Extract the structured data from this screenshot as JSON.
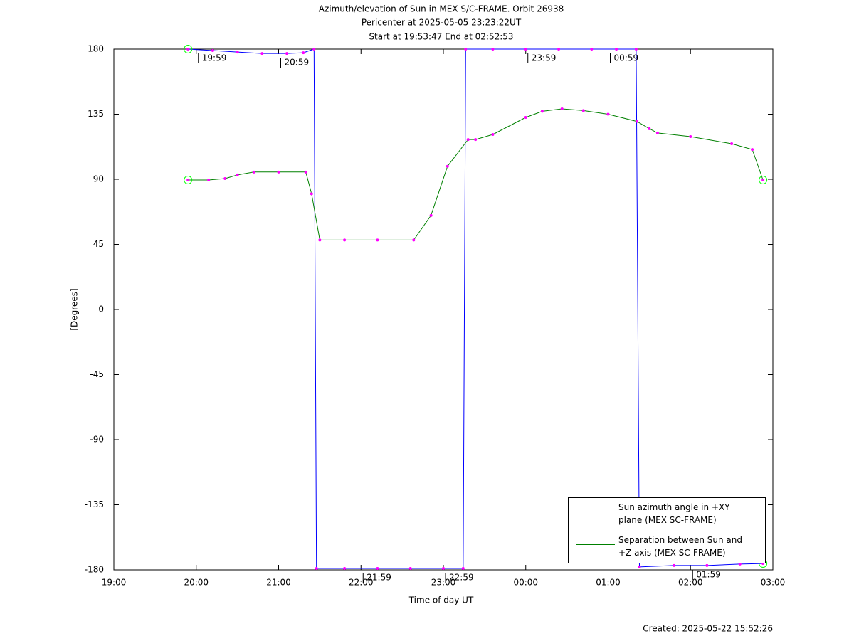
{
  "chart_data": {
    "type": "line",
    "title": "Azimuth/elevation of Sun in MEX S/C-FRAME.  Orbit 26938",
    "subtitle": [
      "Pericenter at 2025-05-05 23:23:22UT",
      "Start at 19:53:47 End at 02:52:53"
    ],
    "xlabel": "Time of day UT",
    "ylabel": "[Degrees]",
    "footer": "Created: 2025-05-22 15:52:26",
    "xlim": [
      19,
      27
    ],
    "xticks": [
      {
        "value": 19,
        "label": "19:00"
      },
      {
        "value": 20,
        "label": "20:00"
      },
      {
        "value": 21,
        "label": "21:00"
      },
      {
        "value": 22,
        "label": "22:00"
      },
      {
        "value": 23,
        "label": "23:00"
      },
      {
        "value": 24,
        "label": "00:00"
      },
      {
        "value": 25,
        "label": "01:00"
      },
      {
        "value": 26,
        "label": "02:00"
      },
      {
        "value": 27,
        "label": "03:00"
      }
    ],
    "ylim": [
      -180,
      180
    ],
    "yticks": [
      180,
      135,
      90,
      45,
      0,
      -45,
      -90,
      -135,
      -180
    ],
    "grid": false,
    "marker_color": "#ff00ff",
    "series": [
      {
        "name": "Sun azimuth angle in +XY\nplane (MEX SC-FRAME)",
        "color": "#0000ff",
        "x": [
          19.9,
          20.2,
          20.5,
          20.8,
          21.1,
          21.3,
          21.43,
          21.46,
          21.8,
          22.2,
          22.6,
          23.0,
          23.24,
          23.27,
          23.6,
          24.0,
          24.4,
          24.8,
          25.1,
          25.34,
          25.38,
          25.8,
          26.2,
          26.6,
          26.88
        ],
        "values": [
          180,
          179,
          178,
          177,
          177,
          177.5,
          180,
          -179,
          -179,
          -179,
          -179,
          -179,
          -179,
          180,
          180,
          180,
          180,
          180,
          180,
          180,
          -178,
          -177,
          -177,
          -176,
          -175.6
        ]
      },
      {
        "name": "Separation between Sun and\n+Z axis (MEX SC-FRAME)",
        "color": "#008000",
        "x": [
          19.9,
          20.15,
          20.35,
          20.5,
          20.7,
          21.0,
          21.33,
          21.4,
          21.5,
          21.8,
          22.2,
          22.64,
          22.85,
          23.05,
          23.3,
          23.39,
          23.6,
          24.0,
          24.2,
          24.44,
          24.7,
          25.0,
          25.35,
          25.5,
          25.6,
          26.0,
          26.5,
          26.75,
          26.88
        ],
        "values": [
          89.5,
          89.5,
          90.5,
          93,
          95,
          95,
          95,
          80,
          48,
          48,
          48,
          48,
          65,
          99,
          117.5,
          117.5,
          121,
          132.8,
          137,
          138.7,
          137.5,
          135,
          130,
          125,
          122,
          119.5,
          114.6,
          110.6,
          89.5
        ]
      }
    ],
    "annotations": [
      {
        "x": 20.0,
        "y": 180,
        "text": "19:59"
      },
      {
        "x": 21.0,
        "y": 177,
        "text": "20:59"
      },
      {
        "x": 22.0,
        "y": -179,
        "text": "21:59"
      },
      {
        "x": 23.0,
        "y": -179,
        "text": "22:59"
      },
      {
        "x": 24.0,
        "y": 180,
        "text": "23:59"
      },
      {
        "x": 25.0,
        "y": 180,
        "text": "00:59"
      },
      {
        "x": 26.0,
        "y": -177,
        "text": "01:59"
      }
    ]
  }
}
